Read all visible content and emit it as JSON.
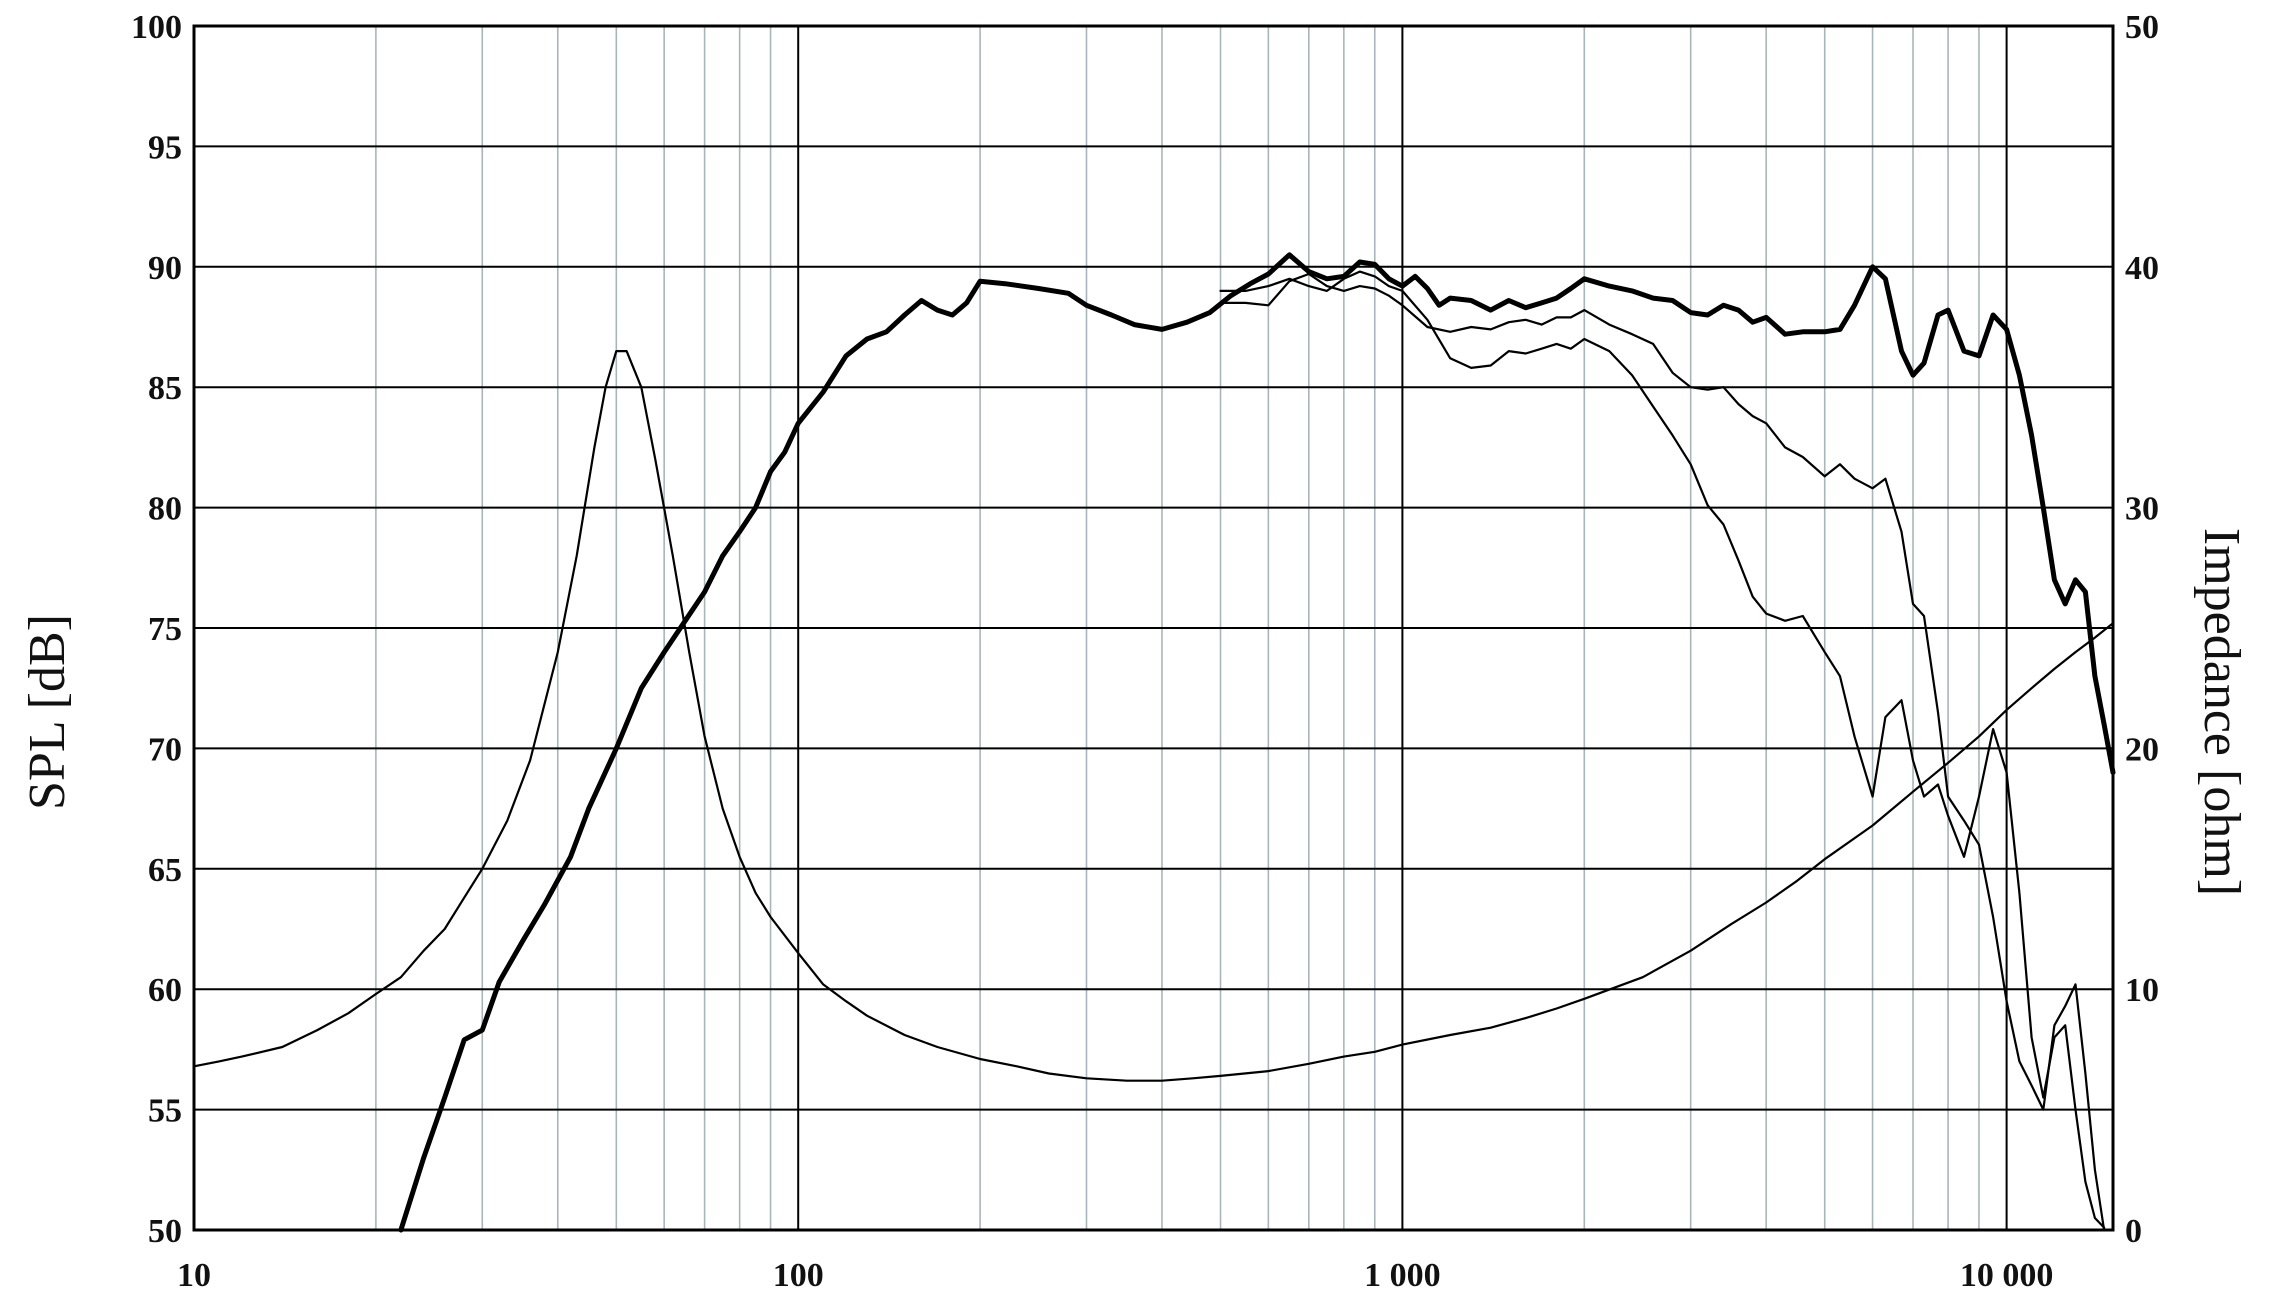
{
  "chart_data": {
    "type": "line",
    "xscale": "log",
    "xlim": [
      10,
      15000
    ],
    "ylim_left": [
      50,
      100
    ],
    "ylim_right": [
      0,
      50
    ],
    "ylabel": "SPL [dB]",
    "ylabel_right": "Impedance [ohm]",
    "xlabel": "",
    "grid": true,
    "x_tick_labels": [
      {
        "x": 10,
        "label": "10"
      },
      {
        "x": 100,
        "label": "100"
      },
      {
        "x": 1000,
        "label": "1 000"
      },
      {
        "x": 10000,
        "label": "10 000"
      }
    ],
    "y_left_ticks": [
      "50",
      "55",
      "60",
      "65",
      "70",
      "75",
      "80",
      "85",
      "90",
      "95",
      "100"
    ],
    "y_right_ticks": [
      "0",
      "10",
      "20",
      "30",
      "40",
      "50"
    ],
    "series": [
      {
        "axis": "left",
        "style": "bold",
        "points": [
          [
            22,
            50
          ],
          [
            24,
            53
          ],
          [
            26,
            55.5
          ],
          [
            28,
            57.9
          ],
          [
            30,
            58.3
          ],
          [
            32,
            60.3
          ],
          [
            35,
            62
          ],
          [
            38,
            63.5
          ],
          [
            42,
            65.5
          ],
          [
            45,
            67.5
          ],
          [
            50,
            70
          ],
          [
            55,
            72.5
          ],
          [
            60,
            74
          ],
          [
            65,
            75.3
          ],
          [
            70,
            76.5
          ],
          [
            75,
            78
          ],
          [
            80,
            79
          ],
          [
            85,
            80
          ],
          [
            90,
            81.5
          ],
          [
            95,
            82.3
          ],
          [
            100,
            83.5
          ],
          [
            110,
            84.8
          ],
          [
            120,
            86.3
          ],
          [
            130,
            87
          ],
          [
            140,
            87.3
          ],
          [
            150,
            88
          ],
          [
            160,
            88.6
          ],
          [
            170,
            88.2
          ],
          [
            180,
            88
          ],
          [
            190,
            88.5
          ],
          [
            200,
            89.4
          ],
          [
            220,
            89.3
          ],
          [
            250,
            89.1
          ],
          [
            280,
            88.9
          ],
          [
            300,
            88.4
          ],
          [
            330,
            88
          ],
          [
            360,
            87.6
          ],
          [
            400,
            87.4
          ],
          [
            440,
            87.7
          ],
          [
            480,
            88.1
          ],
          [
            520,
            88.8
          ],
          [
            560,
            89.3
          ],
          [
            600,
            89.7
          ],
          [
            650,
            90.5
          ],
          [
            700,
            89.8
          ],
          [
            750,
            89.5
          ],
          [
            800,
            89.6
          ],
          [
            850,
            90.2
          ],
          [
            900,
            90.1
          ],
          [
            950,
            89.5
          ],
          [
            1000,
            89.2
          ],
          [
            1050,
            89.6
          ],
          [
            1100,
            89.1
          ],
          [
            1150,
            88.4
          ],
          [
            1200,
            88.7
          ],
          [
            1300,
            88.6
          ],
          [
            1400,
            88.2
          ],
          [
            1500,
            88.6
          ],
          [
            1600,
            88.3
          ],
          [
            1700,
            88.5
          ],
          [
            1800,
            88.7
          ],
          [
            1900,
            89.1
          ],
          [
            2000,
            89.5
          ],
          [
            2200,
            89.2
          ],
          [
            2400,
            89
          ],
          [
            2600,
            88.7
          ],
          [
            2800,
            88.6
          ],
          [
            3000,
            88.1
          ],
          [
            3200,
            88
          ],
          [
            3400,
            88.4
          ],
          [
            3600,
            88.2
          ],
          [
            3800,
            87.7
          ],
          [
            4000,
            87.9
          ],
          [
            4300,
            87.2
          ],
          [
            4600,
            87.3
          ],
          [
            5000,
            87.3
          ],
          [
            5300,
            87.4
          ],
          [
            5600,
            88.4
          ],
          [
            6000,
            90
          ],
          [
            6300,
            89.5
          ],
          [
            6700,
            86.5
          ],
          [
            7000,
            85.5
          ],
          [
            7300,
            86
          ],
          [
            7700,
            88
          ],
          [
            8000,
            88.2
          ],
          [
            8500,
            86.5
          ],
          [
            9000,
            86.3
          ],
          [
            9500,
            88
          ],
          [
            10000,
            87.4
          ],
          [
            10500,
            85.5
          ],
          [
            11000,
            83
          ],
          [
            11500,
            80
          ],
          [
            12000,
            77
          ],
          [
            12500,
            76
          ],
          [
            13000,
            77
          ],
          [
            13500,
            76.5
          ],
          [
            14000,
            73
          ],
          [
            14500,
            71
          ],
          [
            15000,
            69
          ]
        ]
      },
      {
        "axis": "left",
        "style": "thin",
        "points": [
          [
            500,
            88.5
          ],
          [
            550,
            88.5
          ],
          [
            600,
            88.4
          ],
          [
            650,
            89.4
          ],
          [
            700,
            89.7
          ],
          [
            750,
            89.2
          ],
          [
            800,
            89
          ],
          [
            850,
            89.2
          ],
          [
            900,
            89.1
          ],
          [
            950,
            88.8
          ],
          [
            1000,
            88.4
          ],
          [
            1100,
            87.5
          ],
          [
            1200,
            87.3
          ],
          [
            1300,
            87.5
          ],
          [
            1400,
            87.4
          ],
          [
            1500,
            87.7
          ],
          [
            1600,
            87.8
          ],
          [
            1700,
            87.6
          ],
          [
            1800,
            87.9
          ],
          [
            1900,
            87.9
          ],
          [
            2000,
            88.2
          ],
          [
            2200,
            87.6
          ],
          [
            2400,
            87.2
          ],
          [
            2600,
            86.8
          ],
          [
            2800,
            85.6
          ],
          [
            3000,
            85
          ],
          [
            3200,
            84.9
          ],
          [
            3400,
            85
          ],
          [
            3600,
            84.3
          ],
          [
            3800,
            83.8
          ],
          [
            4000,
            83.5
          ],
          [
            4300,
            82.5
          ],
          [
            4600,
            82.1
          ],
          [
            5000,
            81.3
          ],
          [
            5300,
            81.8
          ],
          [
            5600,
            81.2
          ],
          [
            6000,
            80.8
          ],
          [
            6300,
            81.2
          ],
          [
            6700,
            79
          ],
          [
            7000,
            76
          ],
          [
            7300,
            75.5
          ],
          [
            7700,
            71.5
          ],
          [
            8000,
            68
          ],
          [
            8500,
            67
          ],
          [
            9000,
            66
          ],
          [
            9500,
            63
          ],
          [
            10000,
            59.5
          ],
          [
            10500,
            57
          ],
          [
            11000,
            56
          ],
          [
            11500,
            55
          ],
          [
            12000,
            58.5
          ],
          [
            12500,
            59.3
          ],
          [
            13000,
            60.2
          ],
          [
            13500,
            56.5
          ],
          [
            14000,
            52.5
          ],
          [
            14500,
            50
          ]
        ]
      },
      {
        "axis": "left",
        "style": "thin",
        "points": [
          [
            500,
            89
          ],
          [
            550,
            89
          ],
          [
            600,
            89.2
          ],
          [
            650,
            89.5
          ],
          [
            700,
            89.2
          ],
          [
            750,
            89
          ],
          [
            800,
            89.5
          ],
          [
            850,
            89.8
          ],
          [
            900,
            89.6
          ],
          [
            950,
            89.2
          ],
          [
            1000,
            89
          ],
          [
            1100,
            87.8
          ],
          [
            1200,
            86.2
          ],
          [
            1300,
            85.8
          ],
          [
            1400,
            85.9
          ],
          [
            1500,
            86.5
          ],
          [
            1600,
            86.4
          ],
          [
            1700,
            86.6
          ],
          [
            1800,
            86.8
          ],
          [
            1900,
            86.6
          ],
          [
            2000,
            87
          ],
          [
            2200,
            86.5
          ],
          [
            2400,
            85.5
          ],
          [
            2600,
            84.2
          ],
          [
            2800,
            83
          ],
          [
            3000,
            81.8
          ],
          [
            3200,
            80.1
          ],
          [
            3400,
            79.3
          ],
          [
            3600,
            77.8
          ],
          [
            3800,
            76.3
          ],
          [
            4000,
            75.6
          ],
          [
            4300,
            75.3
          ],
          [
            4600,
            75.5
          ],
          [
            5000,
            74
          ],
          [
            5300,
            73
          ],
          [
            5600,
            70.5
          ],
          [
            6000,
            68
          ],
          [
            6300,
            71.3
          ],
          [
            6700,
            72
          ],
          [
            7000,
            69.5
          ],
          [
            7300,
            68
          ],
          [
            7700,
            68.5
          ],
          [
            8000,
            67.2
          ],
          [
            8500,
            65.5
          ],
          [
            9000,
            68
          ],
          [
            9500,
            70.8
          ],
          [
            10000,
            69
          ],
          [
            10500,
            64
          ],
          [
            11000,
            58
          ],
          [
            11500,
            55.5
          ],
          [
            12000,
            58
          ],
          [
            12500,
            58.5
          ],
          [
            13000,
            55
          ],
          [
            13500,
            52
          ],
          [
            14000,
            50.5
          ],
          [
            14500,
            50.1
          ]
        ]
      },
      {
        "axis": "right",
        "style": "thin",
        "points": [
          [
            10,
            6.8
          ],
          [
            11,
            7
          ],
          [
            12,
            7.2
          ],
          [
            14,
            7.6
          ],
          [
            16,
            8.3
          ],
          [
            18,
            9
          ],
          [
            20,
            9.8
          ],
          [
            22,
            10.5
          ],
          [
            24,
            11.6
          ],
          [
            26,
            12.5
          ],
          [
            28,
            13.8
          ],
          [
            30,
            15
          ],
          [
            33,
            17
          ],
          [
            36,
            19.5
          ],
          [
            40,
            24
          ],
          [
            43,
            28
          ],
          [
            46,
            32.5
          ],
          [
            48,
            35
          ],
          [
            50,
            36.5
          ],
          [
            52,
            36.5
          ],
          [
            55,
            35
          ],
          [
            58,
            32
          ],
          [
            62,
            28
          ],
          [
            66,
            24
          ],
          [
            70,
            20.5
          ],
          [
            75,
            17.5
          ],
          [
            80,
            15.5
          ],
          [
            85,
            14
          ],
          [
            90,
            13
          ],
          [
            100,
            11.5
          ],
          [
            110,
            10.2
          ],
          [
            120,
            9.5
          ],
          [
            130,
            8.9
          ],
          [
            150,
            8.1
          ],
          [
            170,
            7.6
          ],
          [
            200,
            7.1
          ],
          [
            230,
            6.8
          ],
          [
            260,
            6.5
          ],
          [
            300,
            6.3
          ],
          [
            350,
            6.2
          ],
          [
            400,
            6.2
          ],
          [
            450,
            6.3
          ],
          [
            500,
            6.4
          ],
          [
            600,
            6.6
          ],
          [
            700,
            6.9
          ],
          [
            800,
            7.2
          ],
          [
            900,
            7.4
          ],
          [
            1000,
            7.7
          ],
          [
            1200,
            8.1
          ],
          [
            1400,
            8.4
          ],
          [
            1600,
            8.8
          ],
          [
            1800,
            9.2
          ],
          [
            2000,
            9.6
          ],
          [
            2500,
            10.5
          ],
          [
            3000,
            11.6
          ],
          [
            3500,
            12.7
          ],
          [
            4000,
            13.6
          ],
          [
            4500,
            14.5
          ],
          [
            5000,
            15.4
          ],
          [
            6000,
            16.8
          ],
          [
            7000,
            18.2
          ],
          [
            8000,
            19.4
          ],
          [
            9000,
            20.5
          ],
          [
            10000,
            21.6
          ],
          [
            11000,
            22.5
          ],
          [
            12000,
            23.3
          ],
          [
            13000,
            24
          ],
          [
            14000,
            24.6
          ],
          [
            15000,
            25.2
          ]
        ]
      }
    ]
  }
}
